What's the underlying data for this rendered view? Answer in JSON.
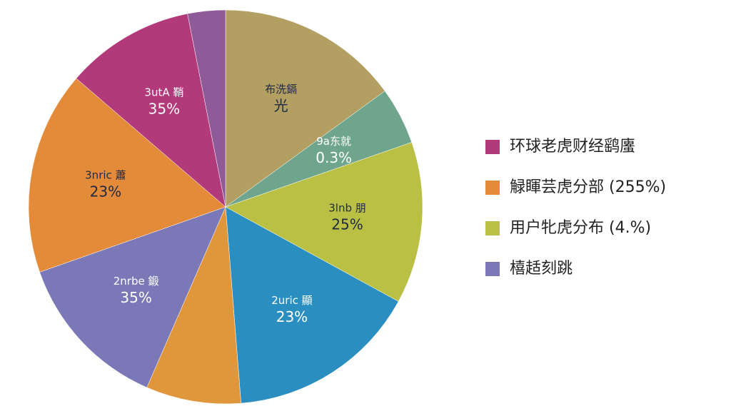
{
  "chart_data": {
    "type": "pie",
    "categories": [
      "布洗鎘",
      "9a东就",
      "3lnb 朋",
      "2uric 顯",
      null,
      "2nrbe 鍛",
      "3nric 蕭",
      "3utA 鞘",
      null
    ],
    "annotations": [
      "光",
      "0.3%",
      "25%",
      "23%",
      null,
      "35%",
      "23%",
      "35%",
      null
    ],
    "values": [
      15,
      4.7,
      13.3,
      15.8,
      7.8,
      13.1,
      16.7,
      10.6,
      3.1
    ],
    "colors": [
      "#b39f62",
      "#6fa58c",
      "#b9c043",
      "#2a8fc0",
      "#e0973c",
      "#7b78b8",
      "#e48b3a",
      "#b23a7a",
      "#8f5a98"
    ],
    "legend": [
      {
        "text": "环球老虎财经鹞螷",
        "color": "#b23a7a"
      },
      {
        "text": "觮睴芸虎分部 (255%)",
        "color": "#e48b3a"
      },
      {
        "text": "用户牝虎分布 (4.%)",
        "color": "#b9c043"
      },
      {
        "text": "橲趏刻跳",
        "color": "#7b78b8"
      }
    ]
  }
}
